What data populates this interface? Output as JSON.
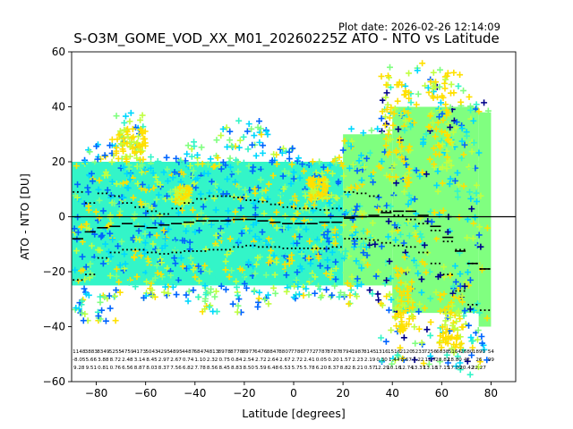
{
  "header": {
    "plot_date": "Plot date: 2026-02-26 12:14:09"
  },
  "chart_data": {
    "type": "scatter",
    "title": "S-O3M_GOME_VOD_XX_M01_20260225Z ATO - NTO vs Latitude",
    "xlabel": "Latitude [degrees]",
    "ylabel": "ATO - NTO [DU]",
    "xlim": [
      -90,
      90
    ],
    "ylim": [
      -60,
      60
    ],
    "xticks": [
      -80,
      -60,
      -40,
      -20,
      0,
      20,
      40,
      60,
      80
    ],
    "yticks": [
      -60,
      -40,
      -20,
      0,
      20,
      40,
      60
    ],
    "marker": "+",
    "colors": {
      "cyan_main": "#33f5c8",
      "green_main": "#80ff80",
      "cyan": "#00d8ff",
      "yellow": "#ffe000",
      "yellow_green": "#c0ff40",
      "blue": "#0064ff",
      "navy": "#00008b",
      "zero_line": "#000000"
    },
    "bands": [
      {
        "x": [
          -90,
          20
        ],
        "low": -25,
        "high": 20,
        "color": "#33f5c8"
      },
      {
        "x": [
          20,
          40
        ],
        "low": -25,
        "high": 30,
        "color": "#80ff80"
      },
      {
        "x": [
          40,
          75
        ],
        "low": -35,
        "high": 40,
        "color": "#80ff80"
      },
      {
        "x": [
          75,
          80
        ],
        "low": -40,
        "high": 38,
        "color": "#80ff80"
      }
    ],
    "zero_line": 0,
    "mean_x": [
      -87.5,
      -82.5,
      -77.5,
      -72.5,
      -67.5,
      -62.5,
      -57.5,
      -52.5,
      -47.5,
      -42.5,
      -37.5,
      -32.5,
      -27.5,
      -22.5,
      -17.5,
      -12.5,
      -7.5,
      -2.5,
      2.5,
      7.5,
      12.5,
      17.5,
      22.5,
      27.5,
      32.5,
      37.5,
      42.5,
      47.5,
      52.5,
      57.5,
      62.5,
      67.5,
      72.5,
      77.5
    ],
    "mean_values": [
      -8,
      -5.5,
      -4,
      -3.5,
      -2.5,
      -3.5,
      -4,
      -3,
      -2.5,
      -2,
      -1.5,
      -1.5,
      -1.5,
      -1,
      -1,
      -1.5,
      -2,
      -2.5,
      -2.5,
      -2.5,
      -2,
      -2,
      -0.5,
      0,
      0.5,
      1.5,
      2,
      2,
      0.5,
      -3.5,
      -7.5,
      -12.5,
      -17,
      -19
    ],
    "upper_values": [
      9,
      5,
      8.5,
      7.5,
      5,
      3.5,
      2,
      1,
      3,
      5,
      6.5,
      7.5,
      7.5,
      7,
      6,
      5.5,
      4.5,
      3.5,
      3,
      3,
      2.5,
      3,
      9,
      8.5,
      7.5,
      2,
      0.5,
      -1,
      -2.5,
      -5,
      -9,
      -12,
      -17,
      -19
    ],
    "lower_values": [
      -23,
      -21,
      -15,
      -13,
      -12,
      -12,
      -13,
      -13.5,
      -13,
      -12.5,
      -12.5,
      -12,
      -12,
      -11,
      -10.5,
      -11,
      -11,
      -11.5,
      -11.5,
      -11.5,
      -11.5,
      -11,
      -8,
      -8,
      -8.5,
      -9.5,
      -10.5,
      -11,
      -13,
      -17,
      -21,
      -27,
      -32,
      -34
    ],
    "annotations": {
      "row1": [
        "1148",
        "3883",
        "8349",
        "5255",
        "4759",
        "4173",
        "5043",
        "4295",
        "4895",
        "4487",
        "6847",
        "4813",
        "8978",
        "8778",
        "8977",
        "6476",
        "8847",
        "8807",
        "7786",
        "7772",
        "7787",
        "8787",
        "8794",
        "1987",
        "8145",
        "1316",
        "1516",
        "2120",
        "5233",
        "7256",
        "6838",
        "5164",
        "2680",
        "1890",
        "54"
      ],
      "row2": [
        "-8.05",
        "5.66",
        "3.88",
        "8.72",
        "2.48",
        "3.14",
        "8.45",
        "2.97",
        "2.67",
        "0.74",
        "1.10",
        "2.32",
        "0.75",
        "0.84",
        "2.54",
        "2.72",
        "2.64",
        "2.67",
        "2.72",
        "2.41",
        "0.05",
        "0.20",
        "1.57",
        "2.23",
        "2.19",
        "0.30",
        "1.44",
        "3.67",
        "7.22",
        "12.7",
        "28.82",
        "18.80",
        "42",
        "26",
        "99"
      ],
      "row3": [
        "9.28",
        "9.51",
        "0.81",
        "0.76",
        "6.56",
        "8.87",
        "8.03",
        "8.37",
        "7.56",
        "6.82",
        "7.78",
        "8.56",
        "8.45",
        "8.83",
        "8.50",
        "5.59",
        "6.48",
        "6.53",
        "5.75",
        "5.78",
        "6.20",
        "8.37",
        "8.82",
        "8.21",
        "0.57",
        "12.29",
        "10.16",
        "12.74",
        "13.37",
        "13.18",
        "17.15",
        "17.00",
        "20.42",
        "22.27",
        ""
      ]
    }
  }
}
